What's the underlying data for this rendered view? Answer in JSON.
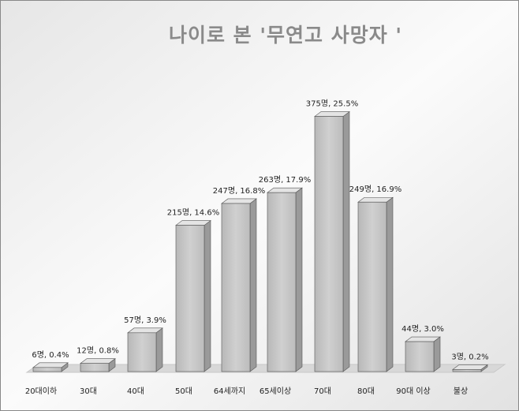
{
  "chart_data": {
    "type": "bar3d",
    "title": "나이로 본 '무연고 사망자 '",
    "categories": [
      "20대이하",
      "30대",
      "40대",
      "50대",
      "64세까지",
      "65세이상",
      "70대",
      "80대",
      "90대 이상",
      "불상"
    ],
    "values": [
      6,
      12,
      57,
      215,
      247,
      263,
      375,
      249,
      44,
      3
    ],
    "value_labels": [
      "6명, 0.4%",
      "12명, 0.8%",
      "57명, 3.9%",
      "215명, 14.6%",
      "247명, 16.8%",
      "263명, 17.9%",
      "375명, 25.5%",
      "249명, 16.9%",
      "44명, 3.0%",
      "3명, 0.2%"
    ],
    "color": "#c4c4c4",
    "ylim": [
      0,
      400
    ]
  }
}
